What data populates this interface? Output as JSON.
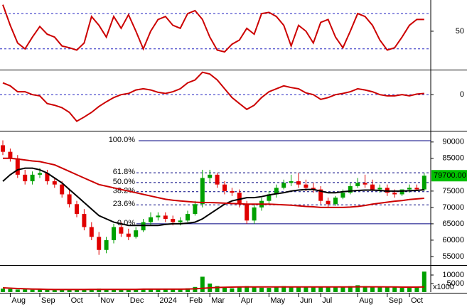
{
  "chart_data": [
    {
      "type": "line",
      "series": [
        {
          "color": "#cc0000",
          "values": [
            95,
            60,
            30,
            20,
            40,
            58,
            45,
            40,
            25,
            22,
            18,
            30,
            75,
            60,
            40,
            75,
            55,
            78,
            50,
            20,
            50,
            70,
            75,
            60,
            55,
            80,
            85,
            70,
            40,
            18,
            15,
            28,
            35,
            55,
            45,
            80,
            82,
            75,
            60,
            25,
            60,
            50,
            30,
            65,
            70,
            40,
            22,
            50,
            80,
            75,
            60,
            35,
            18,
            22,
            40,
            60,
            70,
            70
          ]
        }
      ],
      "ylim": [
        -14,
        103
      ],
      "yticks": [
        50
      ],
      "reference_lines": [
        20,
        80
      ]
    },
    {
      "type": "line",
      "series": [
        {
          "color": "#cc0000",
          "values": [
            2,
            1.5,
            0.5,
            0.5,
            0,
            -0.2,
            -1.5,
            -1.8,
            -2.2,
            -3,
            -4.5,
            -3.8,
            -3,
            -2,
            -1.2,
            -0.5,
            0,
            0.2,
            0.8,
            1,
            0.8,
            0.4,
            0.2,
            0.5,
            1,
            2,
            2.5,
            3.8,
            3.5,
            2.5,
            1,
            -0.5,
            -1.5,
            -2.5,
            -1.8,
            -0.5,
            0.5,
            1,
            1.5,
            1.2,
            1,
            0.3,
            0,
            -0.8,
            -0.5,
            0,
            0.2,
            0.5,
            1,
            0.8,
            0.5,
            0,
            -0.2,
            -0.2,
            0,
            -0.2,
            0.1,
            0.2
          ]
        }
      ],
      "ylim": [
        -6,
        4
      ],
      "yticks": [
        0
      ],
      "reference_lines": [
        0
      ]
    },
    {
      "type": "candlestick",
      "open": [
        89000,
        87000,
        85000,
        80000,
        78000,
        80000,
        80500,
        78000,
        77000,
        74000,
        71000,
        68000,
        64000,
        61000,
        57000,
        60000,
        64000,
        62000,
        61000,
        63000,
        65500,
        67000,
        67500,
        66500,
        65500,
        66000,
        68000,
        71000,
        79000,
        80000,
        77000,
        75000,
        74500,
        71000,
        66000,
        70000,
        72000,
        74000,
        76000,
        77500,
        78000,
        77000,
        76000,
        75500,
        72000,
        71000,
        73000,
        74500,
        76500,
        77500,
        77000,
        75500,
        76000,
        74500,
        74000,
        75500,
        76000,
        75500
      ],
      "high": [
        90500,
        88000,
        86000,
        81500,
        81000,
        82000,
        81500,
        79000,
        78000,
        75500,
        72000,
        69500,
        65500,
        62500,
        61000,
        65000,
        65500,
        63500,
        64000,
        66500,
        68500,
        68500,
        68500,
        67500,
        67000,
        69000,
        72000,
        81500,
        81500,
        80500,
        78000,
        76000,
        75500,
        72000,
        71000,
        73000,
        75000,
        77000,
        78500,
        80000,
        80500,
        78500,
        77500,
        76500,
        73000,
        73500,
        75500,
        77500,
        79000,
        80000,
        78500,
        77000,
        77000,
        75500,
        75500,
        77000,
        77000,
        80500
      ],
      "low": [
        86000,
        84000,
        79000,
        77000,
        77000,
        79000,
        77000,
        76000,
        73000,
        70000,
        67000,
        63000,
        60000,
        55500,
        56000,
        59000,
        61000,
        60000,
        60500,
        62500,
        64500,
        66000,
        65500,
        64500,
        64500,
        65500,
        67500,
        70000,
        77500,
        76000,
        74000,
        73500,
        70000,
        65000,
        65000,
        69000,
        71000,
        73000,
        75500,
        76500,
        76000,
        75000,
        74500,
        71000,
        70000,
        70500,
        72500,
        74000,
        76000,
        76000,
        75000,
        74500,
        73500,
        73000,
        73500,
        74500,
        75000,
        75000
      ],
      "close": [
        87000,
        85000,
        80000,
        78000,
        80000,
        80500,
        78000,
        77000,
        74000,
        71000,
        68000,
        64000,
        61000,
        57000,
        60000,
        64000,
        62000,
        61000,
        63000,
        65500,
        67000,
        67500,
        66500,
        65500,
        66000,
        68000,
        71000,
        79000,
        80000,
        77000,
        75000,
        74500,
        71000,
        66000,
        70000,
        72000,
        74000,
        76000,
        77500,
        78000,
        77000,
        76000,
        75500,
        72000,
        71000,
        73000,
        74500,
        76500,
        77500,
        77000,
        75500,
        76000,
        74500,
        74000,
        75500,
        76000,
        75500,
        79700
      ],
      "up_color": "#00a000",
      "down_color": "#e00000",
      "series": [
        {
          "color": "#000000",
          "values": [
            78000,
            80000,
            81500,
            82000,
            82000,
            81500,
            80500,
            79000,
            77500,
            75500,
            73500,
            71500,
            69500,
            67500,
            66500,
            65500,
            65000,
            64500,
            64500,
            64500,
            64500,
            64500,
            64800,
            65000,
            65000,
            65200,
            65500,
            66500,
            68000,
            69500,
            71000,
            72000,
            72500,
            73000,
            73000,
            73300,
            73800,
            74200,
            74500,
            75000,
            75300,
            75500,
            75500,
            75000,
            74500,
            74500,
            74800,
            75000,
            75200,
            75300,
            75300,
            75200,
            75000,
            75000,
            75000,
            75100,
            75200,
            75400
          ]
        },
        {
          "color": "#cc0000",
          "values": [
            85000,
            85000,
            84800,
            84500,
            84200,
            84000,
            83500,
            83000,
            82000,
            81000,
            80000,
            79000,
            78000,
            77000,
            76500,
            76000,
            75500,
            75000,
            74500,
            74000,
            73500,
            73000,
            72500,
            72200,
            72000,
            71800,
            71600,
            71500,
            71500,
            71400,
            71300,
            71200,
            71100,
            71000,
            71000,
            71000,
            71000,
            70900,
            70800,
            70700,
            70500,
            70300,
            70200,
            70000,
            70000,
            70000,
            70000,
            70100,
            70300,
            70600,
            71000,
            71300,
            71600,
            71900,
            72100,
            72400,
            72600,
            72800
          ]
        }
      ],
      "ylim": [
        52600,
        93000
      ],
      "yticks": [
        55000,
        60000,
        65000,
        70000,
        75000,
        85000,
        90000
      ],
      "fib_levels": [
        {
          "value": 90400,
          "label": "100.0%"
        },
        {
          "value": 80600,
          "label": "61.8%"
        },
        {
          "value": 77600,
          "label": "50.0%"
        },
        {
          "value": 74800,
          "label": "38.2%"
        },
        {
          "value": 70800,
          "label": "23.6%"
        },
        {
          "value": 65000,
          "label": "0.0%"
        }
      ],
      "fib_color": "#1f2fcc",
      "price_label": "79700.00"
    },
    {
      "type": "bar",
      "categories": [
        null,
        "Aug",
        null,
        null,
        null,
        "Sep",
        null,
        null,
        null,
        "Oct",
        null,
        null,
        null,
        "Nov",
        null,
        null,
        null,
        "Dec",
        null,
        null,
        null,
        "2024",
        null,
        null,
        null,
        "Feb",
        null,
        null,
        "Mar",
        null,
        null,
        null,
        "Apr",
        null,
        null,
        null,
        "May",
        null,
        null,
        null,
        "Jun",
        null,
        null,
        "Jul",
        null,
        null,
        null,
        null,
        "Aug",
        null,
        null,
        null,
        "Sep",
        null,
        null,
        "Oct",
        null,
        null
      ],
      "values": [
        2000,
        1800,
        1500,
        1600,
        1400,
        1500,
        1300,
        1200,
        1300,
        1400,
        1500,
        1600,
        1800,
        2000,
        1500,
        1800,
        1600,
        1500,
        1700,
        1800,
        2000,
        1800,
        1600,
        1500,
        1800,
        2200,
        3000,
        9000,
        5000,
        3500,
        2500,
        2200,
        2800,
        3500,
        2800,
        2600,
        2500,
        3000,
        3500,
        3200,
        3000,
        2800,
        2700,
        3200,
        3000,
        2800,
        3000,
        3500,
        4000,
        3500,
        3000,
        2800,
        3200,
        3000,
        2500,
        2800,
        3000,
        12000
      ],
      "color": "#00a000",
      "series": [
        {
          "color": "#cc0000",
          "values": [
            2500,
            2300,
            2100,
            1900,
            1800,
            1700,
            1600,
            1500,
            1500,
            1500,
            1500,
            1500,
            1600,
            1600,
            1600,
            1600,
            1600,
            1600,
            1600,
            1700,
            1700,
            1700,
            1700,
            1700,
            1700,
            1800,
            1900,
            2200,
            2500,
            2700,
            2800,
            2900,
            3000,
            3000,
            3000,
            3000,
            3000,
            3000,
            3000,
            3000,
            3000,
            3000,
            3000,
            3000,
            3000,
            3000,
            3000,
            3000,
            3100,
            3100,
            3100,
            3100,
            3000,
            3000,
            2900,
            2900,
            2900,
            3000
          ]
        }
      ],
      "ylim": [
        0,
        15000
      ],
      "yticks": [
        5000,
        10000
      ],
      "unit_label": "x1000"
    }
  ]
}
